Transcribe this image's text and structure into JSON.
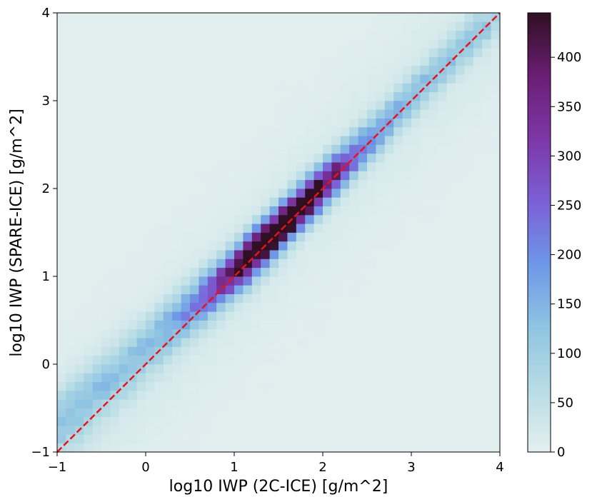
{
  "chart_data": {
    "type": "heatmap",
    "title": "",
    "xlabel": "log10 IWP (2C-ICE) [g/m^2]",
    "ylabel": "log10 IWP (SPARE-ICE) [g/m^2]",
    "xlim": [
      -1,
      4
    ],
    "ylim": [
      -1,
      4
    ],
    "xticks": [
      "−1",
      "0",
      "1",
      "2",
      "3",
      "4"
    ],
    "yticks": [
      "−1",
      "0",
      "1",
      "2",
      "3",
      "4"
    ],
    "bins": 50,
    "colorbar": {
      "min": 0,
      "max": 445,
      "ticks": [
        "0",
        "50",
        "100",
        "150",
        "200",
        "250",
        "300",
        "350",
        "400"
      ],
      "colormap": [
        "#e3efef",
        "#b7dce4",
        "#8fc4e2",
        "#6e97e8",
        "#7b5fd6",
        "#7c37a6",
        "#6a1e73",
        "#2f0f22"
      ]
    },
    "peak": {
      "x": 1.55,
      "y": 1.55,
      "count": 445
    },
    "reference_line": {
      "from": [
        -1,
        -1
      ],
      "to": [
        4,
        4
      ],
      "color": "#ee1111",
      "style": "dashed"
    },
    "grid": false
  }
}
